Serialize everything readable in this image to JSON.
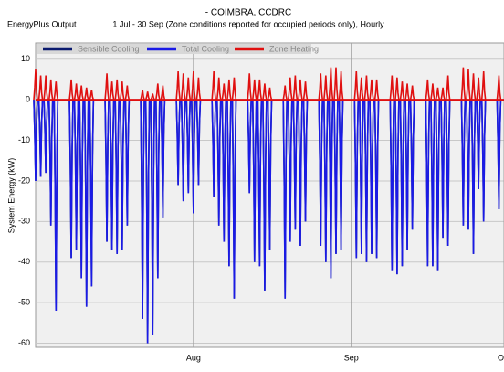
{
  "chart_data": {
    "type": "spike",
    "source": "EnergyPlus Output",
    "title": "- COIMBRA, CCDRC",
    "subtitle": "1 Jul - 30 Sep (Zone conditions reported for occupied periods only), Hourly",
    "y_label": "System Energy (kW)",
    "x": [
      0,
      1,
      2,
      3,
      4,
      7,
      8,
      9,
      10,
      11,
      14,
      15,
      16,
      17,
      18,
      21,
      22,
      23,
      24,
      25,
      28,
      29,
      30,
      31,
      32,
      35,
      36,
      37,
      38,
      39,
      42,
      43,
      44,
      45,
      46,
      49,
      50,
      51,
      52,
      53,
      56,
      57,
      58,
      59,
      60,
      63,
      64,
      65,
      66,
      67,
      70,
      71,
      72,
      73,
      74,
      77,
      78,
      79,
      80,
      81,
      84,
      85,
      86,
      87,
      88,
      91
    ],
    "series": [
      {
        "name": "Sensible Cooling",
        "color": "#0a1a6e",
        "values": [
          -20,
          -19,
          -18,
          -31,
          -52,
          -39,
          -37,
          -44,
          -51,
          -46,
          -35,
          -37,
          -38,
          -37,
          -31,
          -54,
          -60,
          -58,
          -44,
          -29,
          -21,
          -25,
          -23,
          -28,
          -21,
          -24,
          -31,
          -35,
          -41,
          -49,
          -23,
          -40,
          -41,
          -47,
          -37,
          -49,
          -35,
          -32,
          -36,
          -30,
          -36,
          -40,
          -44,
          -38,
          -37,
          -39,
          -38,
          -40,
          -38,
          -39,
          -42,
          -43,
          -41,
          -37,
          -32,
          -41,
          -41,
          -42,
          -34,
          -36,
          -31,
          -32,
          -38,
          -22,
          -30,
          -27
        ]
      },
      {
        "name": "Total Cooling",
        "color": "#1a1ae6",
        "values": [
          -20,
          -19,
          -18,
          -31,
          -52,
          -39,
          -37,
          -44,
          -51,
          -46,
          -35,
          -37,
          -38,
          -37,
          -31,
          -54,
          -60,
          -58,
          -44,
          -29,
          -21,
          -25,
          -23,
          -28,
          -21,
          -24,
          -31,
          -35,
          -41,
          -49,
          -23,
          -40,
          -41,
          -47,
          -37,
          -49,
          -35,
          -32,
          -36,
          -30,
          -36,
          -40,
          -44,
          -38,
          -37,
          -39,
          -38,
          -40,
          -38,
          -39,
          -42,
          -43,
          -41,
          -37,
          -32,
          -41,
          -41,
          -42,
          -34,
          -36,
          -31,
          -32,
          -38,
          -22,
          -30,
          -27
        ]
      },
      {
        "name": "Zone Heating",
        "color": "#e01010",
        "values": [
          7.5,
          6,
          6,
          5,
          4.5,
          5,
          4,
          3.5,
          3,
          2.5,
          6.5,
          4.5,
          5,
          4.5,
          3.5,
          2.5,
          2,
          1.5,
          4,
          3.5,
          7,
          6.5,
          5.5,
          7,
          5.5,
          7,
          5.5,
          4,
          5,
          5.5,
          6.5,
          5,
          5,
          4,
          3,
          3.5,
          5.5,
          6,
          5,
          4.5,
          6.5,
          6,
          8,
          8,
          7,
          7,
          5.5,
          6,
          5,
          5,
          6,
          5.5,
          4.5,
          4,
          3.5,
          5,
          4,
          3,
          3,
          6,
          8,
          7.5,
          6.5,
          5.5,
          7,
          6
        ]
      }
    ],
    "xlim": [
      0,
      92
    ],
    "xticks": [
      {
        "value": 31,
        "label": "Aug"
      },
      {
        "value": 62,
        "label": "Sep"
      },
      {
        "value": 92,
        "label": "Oct"
      }
    ],
    "ylim": [
      -61,
      14
    ],
    "yticks": [
      -60,
      -50,
      -40,
      -30,
      -20,
      -10,
      0,
      10
    ],
    "grid": true
  }
}
